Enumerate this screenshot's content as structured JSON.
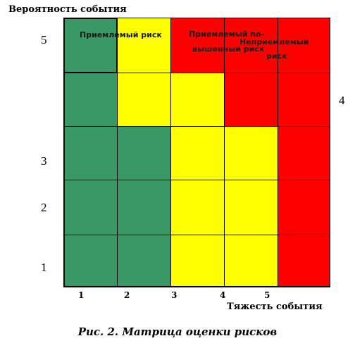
{
  "y_axis": {
    "title": "Вероятность события",
    "ticks": [
      "5",
      "3",
      "2",
      "1"
    ],
    "side_tick": "4"
  },
  "x_axis": {
    "title": "Тяжесть события",
    "ticks": [
      "1",
      "2",
      "3",
      "4",
      "5"
    ]
  },
  "zones": {
    "acceptable": "Приемлемый риск",
    "elevated_line1": "Приемлемый по-",
    "elevated_line2": "вышенный риск",
    "unacceptable_line1": "Неприемлемый",
    "unacceptable_line2": "риск"
  },
  "caption": "Рис. 2. Матрица оценки рисков",
  "colors": {
    "green": "#3a9866",
    "yellow": "#ffff00",
    "red": "#ff0000",
    "grid": "#000000"
  },
  "matrix": [
    [
      "green",
      "yellow",
      "red",
      "red",
      "red"
    ],
    [
      "green",
      "yellow",
      "yellow",
      "red",
      "red"
    ],
    [
      "green",
      "green",
      "yellow",
      "yellow",
      "red"
    ],
    [
      "green",
      "green",
      "yellow",
      "yellow",
      "red"
    ],
    [
      "green",
      "green",
      "yellow",
      "yellow",
      "red"
    ]
  ]
}
